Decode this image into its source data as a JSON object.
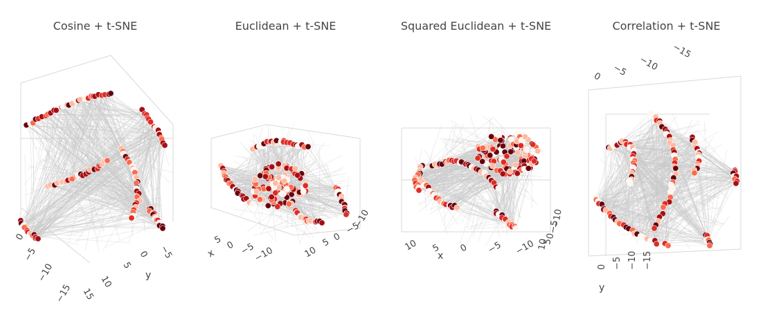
{
  "chart_data": [
    {
      "type": "scatter",
      "title": "Cosine + t-SNE",
      "axes": {
        "x": {
          "title": "",
          "ticks": [
            "0",
            "−5",
            "−10",
            "−15"
          ]
        },
        "y": {
          "title": "y",
          "ticks": [
            "−5",
            "0",
            "5",
            "10",
            "15"
          ]
        },
        "z": {
          "title": "",
          "ticks": []
        }
      },
      "grid": true
    },
    {
      "type": "scatter",
      "title": "Euclidean + t-SNE",
      "axes": {
        "x": {
          "title": "x",
          "ticks": [
            "5",
            "0",
            "−5",
            "−10"
          ]
        },
        "y": {
          "title": "",
          "ticks": [
            "10",
            "5",
            "0",
            "−5",
            "−10"
          ]
        },
        "z": {
          "title": "",
          "ticks": []
        }
      },
      "grid": true
    },
    {
      "type": "scatter",
      "title": "Squared Euclidean + t-SNE",
      "axes": {
        "x": {
          "title": "x",
          "ticks": [
            "10",
            "5",
            "0",
            "−5",
            "−10"
          ]
        },
        "y": {
          "title": "",
          "ticks": [
            "10",
            "5",
            "0",
            "−5",
            "−10"
          ]
        },
        "z": {
          "title": "",
          "ticks": []
        }
      },
      "grid": true
    },
    {
      "type": "scatter",
      "title": "Correlation + t-SNE",
      "axes": {
        "x": {
          "title": "",
          "ticks": [
            "0",
            "−5",
            "−10",
            "−15"
          ]
        },
        "y": {
          "title": "y",
          "ticks": [
            "0",
            "−5",
            "−10",
            "−15"
          ]
        },
        "z": {
          "title": "",
          "ticks": []
        }
      },
      "grid": true
    }
  ],
  "colors": {
    "edges": "#c9c9c9",
    "grid": "#d8d8d8",
    "marker_scale": [
      "#fff5f0",
      "#fcbba1",
      "#fb6a4a",
      "#de2d26",
      "#a50f15",
      "#67000d"
    ]
  }
}
